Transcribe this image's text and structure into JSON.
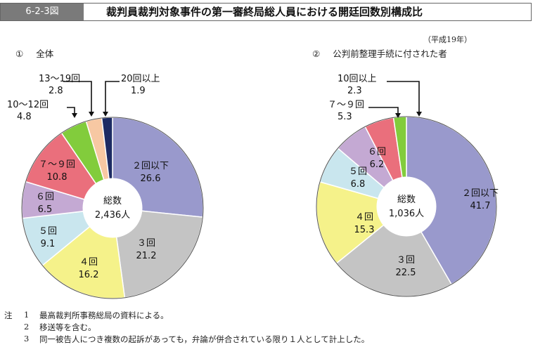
{
  "header": {
    "fig_id": "6-2-3図",
    "title": "裁判員裁判対象事件の第一審終局総人員における開廷回数別構成比"
  },
  "year_label": "（平成19年）",
  "chart_data": [
    {
      "type": "pie",
      "label": "全体",
      "label_num": "①",
      "center": {
        "line1": "総数",
        "line2": "2,436人"
      },
      "categories": [
        "２回以下",
        "３回",
        "４回",
        "５回",
        "６回",
        "７～９回",
        "10～12回",
        "13～19回",
        "20回以上"
      ],
      "values": [
        26.6,
        21.2,
        16.2,
        9.1,
        6.5,
        10.8,
        4.8,
        2.8,
        1.9
      ],
      "colors": [
        "#9999cc",
        "#c4c4c4",
        "#f5f28a",
        "#c9e6ee",
        "#c4a9d3",
        "#ea6f7c",
        "#82cc3c",
        "#f7c8a3",
        "#1d2b63"
      ]
    },
    {
      "type": "pie",
      "label": "公判前整理手続に付された者",
      "label_num": "②",
      "center": {
        "line1": "総数",
        "line2": "1,036人"
      },
      "categories": [
        "２回以下",
        "３回",
        "４回",
        "５回",
        "６回",
        "７～９回",
        "10回以上"
      ],
      "values": [
        41.7,
        22.5,
        15.3,
        6.8,
        6.2,
        5.3,
        2.3
      ],
      "colors": [
        "#9999cc",
        "#c4c4c4",
        "#f5f28a",
        "#c9e6ee",
        "#c4a9d3",
        "#ea6f7c",
        "#82cc3c"
      ]
    }
  ],
  "notes": [
    {
      "num": "1",
      "text": "最高裁判所事務総局の資料による。"
    },
    {
      "num": "2",
      "text": "移送等を含む。"
    },
    {
      "num": "3",
      "text": "同一被告人につき複数の起訴があっても，弁論が併合されている限り１人として計上した。"
    }
  ],
  "notes_prefix": "注"
}
